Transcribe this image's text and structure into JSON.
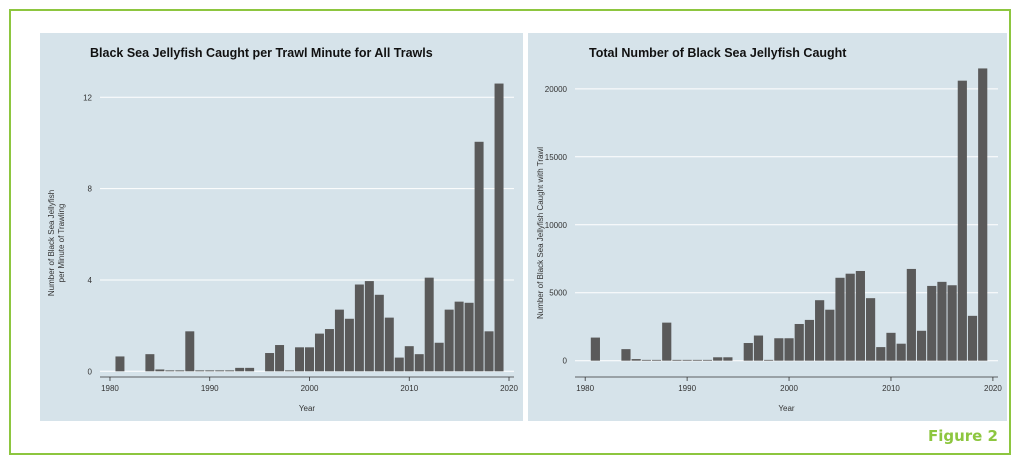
{
  "figure_label": "Figure 2",
  "colors": {
    "border": "#8dc63f",
    "panel_bg": "#d6e3ea",
    "bar": "#5a5a5a",
    "figure_label": "#8dc63f"
  },
  "chart_data": [
    {
      "type": "bar",
      "title": "Black Sea Jellyfish Caught per Trawl Minute for All Trawls",
      "xlabel": "Year",
      "ylabel_lines": [
        "Number of Black Sea Jellyfish",
        "per Minute of Trawling"
      ],
      "x_ticks": [
        1980,
        1990,
        2000,
        2010,
        2020
      ],
      "y_ticks": [
        0,
        4,
        8,
        12
      ],
      "xlim": [
        1979,
        2020.5
      ],
      "ylim": [
        -0.25,
        13.5
      ],
      "grid": true,
      "x": [
        1981,
        1982,
        1983,
        1984,
        1985,
        1986,
        1987,
        1988,
        1989,
        1990,
        1991,
        1992,
        1993,
        1994,
        1995,
        1996,
        1997,
        1998,
        1999,
        2000,
        2001,
        2002,
        2003,
        2004,
        2005,
        2006,
        2007,
        2008,
        2009,
        2010,
        2011,
        2012,
        2013,
        2014,
        2015,
        2016,
        2017,
        2018,
        2019
      ],
      "values": [
        0.65,
        0,
        0,
        0.75,
        0.08,
        0.04,
        0.04,
        1.75,
        0.04,
        0.04,
        0.04,
        0.04,
        0.15,
        0.15,
        0,
        0.8,
        1.15,
        0.04,
        1.05,
        1.05,
        1.65,
        1.85,
        2.7,
        2.3,
        3.8,
        3.95,
        3.35,
        2.35,
        0.6,
        1.1,
        0.75,
        4.1,
        1.25,
        2.7,
        3.05,
        3.0,
        10.05,
        1.75,
        12.6
      ]
    },
    {
      "type": "bar",
      "title": "Total Number of Black Sea Jellyfish Caught",
      "xlabel": "Year",
      "ylabel_lines": [
        "Number of Black Sea Jellyfish Caught with Trawl"
      ],
      "x_ticks": [
        1980,
        1990,
        2000,
        2010,
        2020
      ],
      "y_ticks": [
        0,
        5000,
        10000,
        15000,
        20000
      ],
      "xlim": [
        1979,
        2020.5
      ],
      "ylim": [
        -1200,
        21900
      ],
      "grid": true,
      "x": [
        1981,
        1982,
        1983,
        1984,
        1985,
        1986,
        1987,
        1988,
        1989,
        1990,
        1991,
        1992,
        1993,
        1994,
        1995,
        1996,
        1997,
        1998,
        1999,
        2000,
        2001,
        2002,
        2003,
        2004,
        2005,
        2006,
        2007,
        2008,
        2009,
        2010,
        2011,
        2012,
        2013,
        2014,
        2015,
        2016,
        2017,
        2018,
        2019
      ],
      "values": [
        1700,
        0,
        0,
        850,
        120,
        60,
        60,
        2800,
        60,
        60,
        60,
        60,
        250,
        250,
        0,
        1300,
        1850,
        60,
        1650,
        1650,
        2700,
        3000,
        4450,
        3750,
        6100,
        6400,
        6600,
        4600,
        1000,
        2050,
        1250,
        6750,
        2200,
        5500,
        5800,
        5550,
        20600,
        3300,
        21500
      ]
    }
  ]
}
